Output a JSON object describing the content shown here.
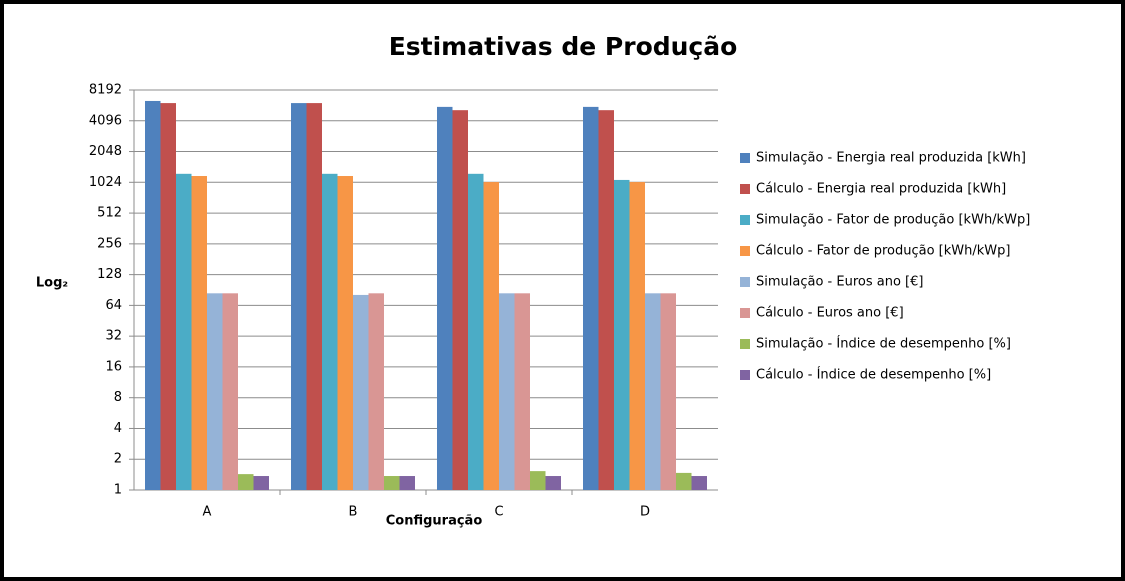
{
  "chart_data": {
    "type": "bar",
    "title": "Estimativas de Produção",
    "x_label": "Configuração",
    "y_label": "Log₂",
    "log_scale": true,
    "log_base": 2,
    "grid": true,
    "legend": "right",
    "categories": [
      "A",
      "B",
      "C",
      "D"
    ],
    "ylim": [
      1,
      8192
    ],
    "yticks": [
      1,
      2,
      4,
      8,
      16,
      32,
      64,
      128,
      256,
      512,
      1024,
      2048,
      4096,
      8192
    ],
    "series": [
      {
        "name": "Simulação - Energia real produzida [kWh]",
        "color": "#4F81BD",
        "values": [
          6400,
          6100,
          5600,
          5600
        ]
      },
      {
        "name": "Cálculo - Energia real produzida [kWh]",
        "color": "#C0504D",
        "values": [
          6100,
          6100,
          5200,
          5200
        ]
      },
      {
        "name": "Simulação - Fator de produção [kWh/kWp]",
        "color": "#4BACC6",
        "values": [
          1240,
          1240,
          1240,
          1080
        ]
      },
      {
        "name": "Cálculo - Fator de produção [kWh/kWp]",
        "color": "#F79646",
        "values": [
          1180,
          1180,
          1030,
          1030
        ]
      },
      {
        "name": "Simulação - Euros ano [€]",
        "color": "#95B3D7",
        "values": [
          84,
          81,
          84,
          84
        ]
      },
      {
        "name": "Cálculo - Euros ano [€]",
        "color": "#D99694",
        "values": [
          84,
          84,
          84,
          84
        ]
      },
      {
        "name": "Simulação - Índice de desempenho [%]",
        "color": "#9BBB59",
        "values": [
          1.43,
          1.37,
          1.53,
          1.47
        ]
      },
      {
        "name": "Cálculo - Índice de desempenho [%]",
        "color": "#8064A2",
        "values": [
          1.37,
          1.37,
          1.37,
          1.37
        ]
      }
    ]
  }
}
